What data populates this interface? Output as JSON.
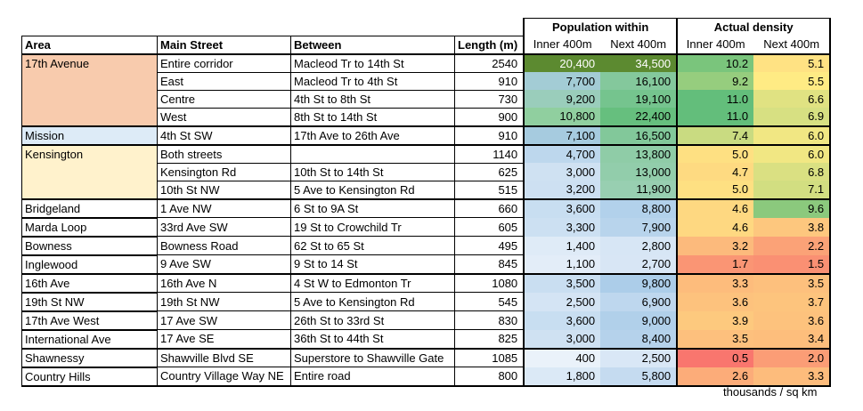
{
  "header": {
    "group_population": "Population within",
    "group_density": "Actual density",
    "col_area": "Area",
    "col_street": "Main Street",
    "col_between": "Between",
    "col_length": "Length (m)",
    "sub_inner": "Inner 400m",
    "sub_next": "Next 400m"
  },
  "rows": [
    {
      "area": "17th Avenue",
      "street": "Entire corridor",
      "between": "Macleod Tr to 14th St",
      "length": "2540",
      "pop_inner": "20,400",
      "pop_next": "34,500",
      "den_inner": "10.2",
      "den_next": "5.1"
    },
    {
      "area": "",
      "street": "East",
      "between": "Macleod Tr to 4th St",
      "length": "910",
      "pop_inner": "7,700",
      "pop_next": "16,100",
      "den_inner": "9.2",
      "den_next": "5.5"
    },
    {
      "area": "",
      "street": "Centre",
      "between": "4th St to 8th St",
      "length": "730",
      "pop_inner": "9,200",
      "pop_next": "19,100",
      "den_inner": "11.0",
      "den_next": "6.6"
    },
    {
      "area": "",
      "street": "West",
      "between": "8th St to 14th St",
      "length": "900",
      "pop_inner": "10,800",
      "pop_next": "22,400",
      "den_inner": "11.0",
      "den_next": "6.9"
    },
    {
      "area": "Mission",
      "street": "4th St SW",
      "between": "17th Ave to 26th Ave",
      "length": "910",
      "pop_inner": "7,100",
      "pop_next": "16,500",
      "den_inner": "7.4",
      "den_next": "6.0"
    },
    {
      "area": "Kensington",
      "street": "Both streets",
      "between": "",
      "length": "1140",
      "pop_inner": "4,700",
      "pop_next": "13,800",
      "den_inner": "5.0",
      "den_next": "6.0"
    },
    {
      "area": "",
      "street": "Kensington Rd",
      "between": "10th St to 14th St",
      "length": "625",
      "pop_inner": "3,000",
      "pop_next": "13,000",
      "den_inner": "4.7",
      "den_next": "6.8"
    },
    {
      "area": "",
      "street": "10th St NW",
      "between": "5 Ave to Kensington Rd",
      "length": "515",
      "pop_inner": "3,200",
      "pop_next": "11,900",
      "den_inner": "5.0",
      "den_next": "7.1"
    },
    {
      "area": "Bridgeland",
      "street": "1 Ave NW",
      "between": "6 St to 9A St",
      "length": "660",
      "pop_inner": "3,600",
      "pop_next": "8,800",
      "den_inner": "4.6",
      "den_next": "9.6"
    },
    {
      "area": "Marda Loop",
      "street": "33rd Ave SW",
      "between": "19 St to Crowchild Tr",
      "length": "605",
      "pop_inner": "3,300",
      "pop_next": "7,900",
      "den_inner": "4.6",
      "den_next": "3.8"
    },
    {
      "area": "Bowness",
      "street": "Bowness Road",
      "between": "62 St to 65 St",
      "length": "495",
      "pop_inner": "1,400",
      "pop_next": "2,800",
      "den_inner": "3.2",
      "den_next": "2.2"
    },
    {
      "area": "Inglewood",
      "street": "9 Ave SW",
      "between": "9 St to 14 St",
      "length": "845",
      "pop_inner": "1,100",
      "pop_next": "2,700",
      "den_inner": "1.7",
      "den_next": "1.5"
    },
    {
      "area": "16th Ave",
      "street": "16th Ave N",
      "between": "4 St W to Edmonton Tr",
      "length": "1080",
      "pop_inner": "3,500",
      "pop_next": "9,800",
      "den_inner": "3.3",
      "den_next": "3.5"
    },
    {
      "area": "19th St NW",
      "street": "19th St NW",
      "between": "5 Ave to Kensington Rd",
      "length": "545",
      "pop_inner": "2,500",
      "pop_next": "6,900",
      "den_inner": "3.6",
      "den_next": "3.7"
    },
    {
      "area": "17th Ave West",
      "street": "17 Ave SW",
      "between": "26th St to 33rd St",
      "length": "830",
      "pop_inner": "3,600",
      "pop_next": "9,000",
      "den_inner": "3.9",
      "den_next": "3.6"
    },
    {
      "area": "International Ave",
      "street": "17 Ave SE",
      "between": "36th St to 44th St",
      "length": "825",
      "pop_inner": "3,000",
      "pop_next": "8,400",
      "den_inner": "3.5",
      "den_next": "3.4"
    },
    {
      "area": "Shawnessy",
      "street": "Shawville Blvd SE",
      "between": "Superstore to Shawville Gate",
      "length": "1085",
      "pop_inner": "400",
      "pop_next": "2,500",
      "den_inner": "0.5",
      "den_next": "2.0"
    },
    {
      "area": "Country Hills",
      "street": "Country Village Way NE",
      "between": "Entire road",
      "length": "800",
      "pop_inner": "1,800",
      "pop_next": "5,800",
      "den_inner": "2.6",
      "den_next": "3.3"
    }
  ],
  "footnote": "thousands / sq km"
}
